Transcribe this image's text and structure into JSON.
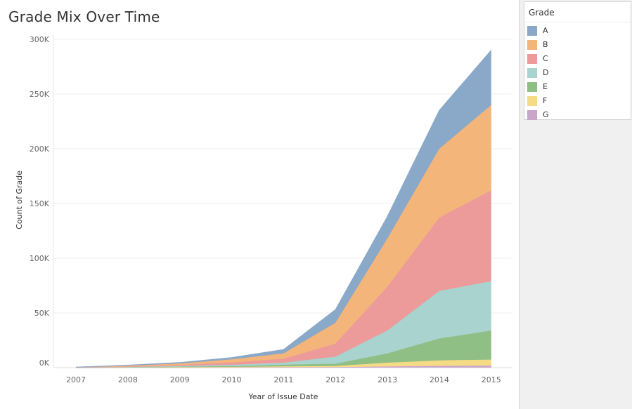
{
  "title": "Grade Mix Over Time",
  "legend": {
    "title": "Grade",
    "items": [
      {
        "label": "A",
        "color": "#8aa8c8"
      },
      {
        "label": "B",
        "color": "#f4b57a"
      },
      {
        "label": "C",
        "color": "#ec9a9a"
      },
      {
        "label": "D",
        "color": "#a9d3cf"
      },
      {
        "label": "E",
        "color": "#8fbf84"
      },
      {
        "label": "F",
        "color": "#f6db86"
      },
      {
        "label": "G",
        "color": "#c9a6c9"
      }
    ]
  },
  "chart_data": {
    "type": "area",
    "stacked": true,
    "x": [
      "2007",
      "2008",
      "2009",
      "2010",
      "2011",
      "2012",
      "2013",
      "2014",
      "2015"
    ],
    "xlabel": "Year of Issue Date",
    "ylabel": "Count of Grade",
    "ylim": [
      0,
      300000
    ],
    "yticks": [
      0,
      50000,
      100000,
      150000,
      200000,
      250000,
      300000
    ],
    "ytick_labels": [
      "0K",
      "50K",
      "100K",
      "150K",
      "200K",
      "250K",
      "300K"
    ],
    "grid": "horizontal",
    "series": [
      {
        "name": "G",
        "color": "#c9a6c9",
        "values": [
          10,
          50,
          150,
          250,
          400,
          500,
          1000,
          1600,
          1800
        ]
      },
      {
        "name": "F",
        "color": "#f6db86",
        "values": [
          20,
          100,
          250,
          400,
          700,
          1000,
          3500,
          5000,
          5500
        ]
      },
      {
        "name": "E",
        "color": "#8fbf84",
        "values": [
          30,
          150,
          400,
          700,
          1500,
          2000,
          8500,
          20000,
          26500
        ]
      },
      {
        "name": "D",
        "color": "#a9d3cf",
        "values": [
          50,
          250,
          600,
          1200,
          1900,
          6500,
          21000,
          43400,
          45200
        ]
      },
      {
        "name": "C",
        "color": "#ec9a9a",
        "values": [
          80,
          450,
          1000,
          2200,
          3500,
          12000,
          40000,
          67000,
          83000
        ]
      },
      {
        "name": "B",
        "color": "#f4b57a",
        "values": [
          100,
          650,
          1350,
          2750,
          5000,
          19000,
          44000,
          63000,
          78000
        ]
      },
      {
        "name": "A",
        "color": "#8aa8c8",
        "values": [
          110,
          500,
          850,
          1600,
          3500,
          12000,
          20000,
          35000,
          50000
        ]
      }
    ]
  }
}
